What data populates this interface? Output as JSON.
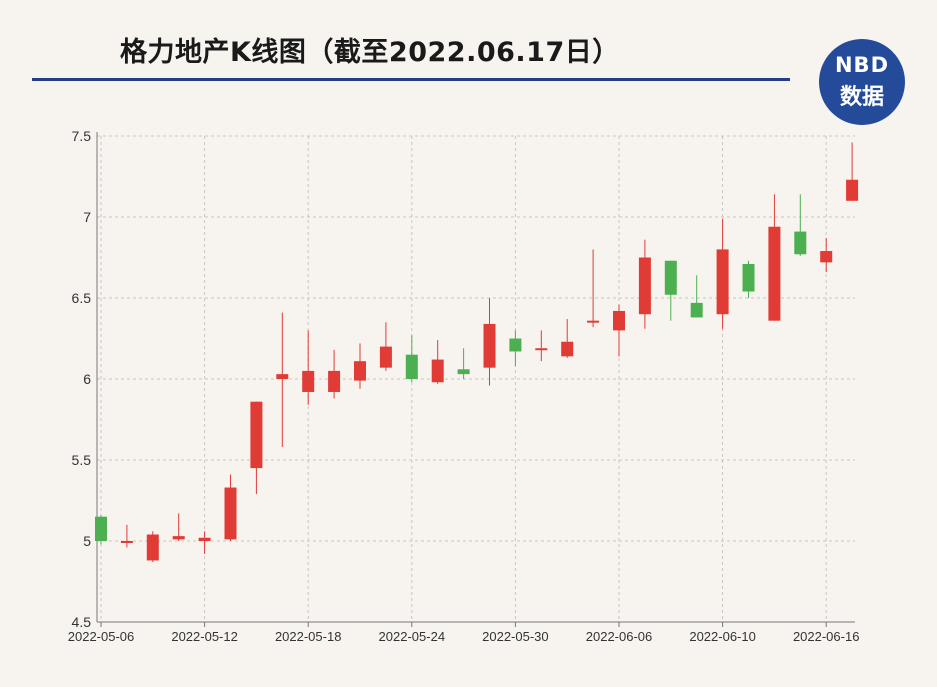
{
  "title": "格力地产K线图（截至2022.06.17日）",
  "logo": {
    "line1": "NBD",
    "line2": "数据"
  },
  "colors": {
    "up": "#e03b35",
    "down": "#4caf50",
    "grid": "#c9c6c2",
    "axis": "#777777",
    "text": "#333333"
  },
  "chart_data": {
    "type": "candlestick",
    "title": "格力地产K线图（截至2022.06.17日）",
    "ylim": [
      4.5,
      7.5
    ],
    "yticks": [
      4.5,
      5,
      5.5,
      6,
      6.5,
      7,
      7.5
    ],
    "ytick_labels": [
      "4.5",
      "5",
      "5.5",
      "6",
      "6.5",
      "7",
      "7.5"
    ],
    "xtick_labels": [
      "2022-05-06",
      "2022-05-12",
      "2022-05-18",
      "2022-05-24",
      "2022-05-30",
      "2022-06-06",
      "2022-06-10",
      "2022-06-16"
    ],
    "xtick_index": [
      0,
      4,
      8,
      12,
      16,
      20,
      24,
      28
    ],
    "grid": true,
    "candles": [
      {
        "open": 5.15,
        "close": 5.0,
        "high": 5.16,
        "low": 4.98
      },
      {
        "open": 5.0,
        "close": 5.0,
        "high": 5.1,
        "low": 4.96
      },
      {
        "open": 4.88,
        "close": 5.04,
        "high": 5.06,
        "low": 4.87
      },
      {
        "open": 5.01,
        "close": 5.03,
        "high": 5.17,
        "low": 5.0
      },
      {
        "open": 5.0,
        "close": 5.02,
        "high": 5.06,
        "low": 4.92
      },
      {
        "open": 5.01,
        "close": 5.33,
        "high": 5.41,
        "low": 5.0
      },
      {
        "open": 5.45,
        "close": 5.86,
        "high": 5.86,
        "low": 5.29
      },
      {
        "open": 6.0,
        "close": 6.03,
        "high": 6.41,
        "low": 5.58
      },
      {
        "open": 5.92,
        "close": 6.05,
        "high": 6.3,
        "low": 5.84
      },
      {
        "open": 5.92,
        "close": 6.05,
        "high": 6.18,
        "low": 5.88
      },
      {
        "open": 5.99,
        "close": 6.11,
        "high": 6.22,
        "low": 5.94
      },
      {
        "open": 6.07,
        "close": 6.2,
        "high": 6.35,
        "low": 6.05
      },
      {
        "open": 6.15,
        "close": 6.0,
        "high": 6.27,
        "low": 5.98
      },
      {
        "open": 5.98,
        "close": 6.12,
        "high": 6.24,
        "low": 5.97
      },
      {
        "open": 6.06,
        "close": 6.03,
        "high": 6.19,
        "low": 6.0
      },
      {
        "open": 6.07,
        "close": 6.34,
        "high": 6.5,
        "low": 5.96
      },
      {
        "open": 6.25,
        "close": 6.17,
        "high": 6.3,
        "low": 6.08
      },
      {
        "open": 6.19,
        "close": 6.19,
        "high": 6.3,
        "low": 6.11
      },
      {
        "open": 6.14,
        "close": 6.23,
        "high": 6.37,
        "low": 6.13
      },
      {
        "open": 6.36,
        "close": 6.36,
        "high": 6.8,
        "low": 6.32
      },
      {
        "open": 6.3,
        "close": 6.42,
        "high": 6.46,
        "low": 6.14
      },
      {
        "open": 6.4,
        "close": 6.75,
        "high": 6.86,
        "low": 6.31
      },
      {
        "open": 6.73,
        "close": 6.52,
        "high": 6.73,
        "low": 6.36
      },
      {
        "open": 6.47,
        "close": 6.38,
        "high": 6.64,
        "low": 6.38
      },
      {
        "open": 6.4,
        "close": 6.8,
        "high": 6.99,
        "low": 6.31
      },
      {
        "open": 6.71,
        "close": 6.54,
        "high": 6.73,
        "low": 6.5
      },
      {
        "open": 6.36,
        "close": 6.94,
        "high": 7.14,
        "low": 6.36
      },
      {
        "open": 6.91,
        "close": 6.77,
        "high": 7.14,
        "low": 6.76
      },
      {
        "open": 6.72,
        "close": 6.79,
        "high": 6.87,
        "low": 6.66
      },
      {
        "open": 7.1,
        "close": 7.23,
        "high": 7.46,
        "low": 7.1
      }
    ]
  }
}
